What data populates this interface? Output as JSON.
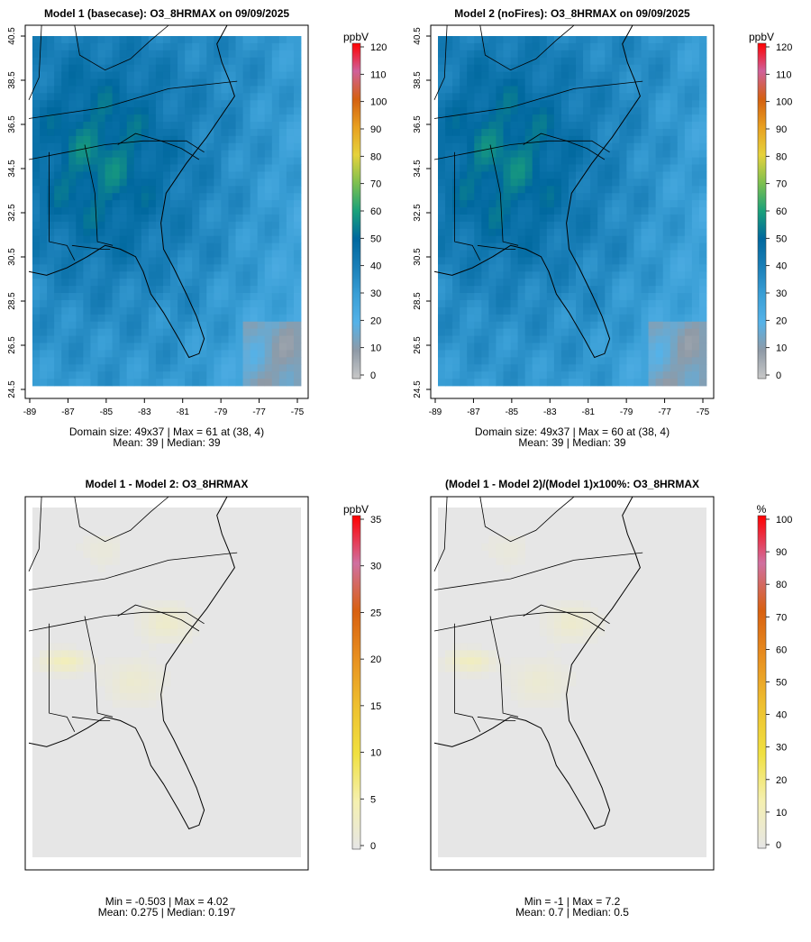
{
  "figure": {
    "panels": [
      {
        "title": "Model 1 (basecase): O3_8HRMAX on 09/09/2025",
        "kind": "abs",
        "stats_line1": "Domain size: 49x37 | Max = 61 at (38, 4)",
        "stats_line2": "Mean: 39 |  Median: 39",
        "x_ticks": [
          "-89",
          "-87",
          "-85",
          "-83",
          "-81",
          "-79",
          "-77",
          "-75"
        ],
        "y_ticks": [
          "24.5",
          "26.5",
          "28.5",
          "30.5",
          "32.5",
          "34.5",
          "36.5",
          "38.5",
          "40.5"
        ],
        "colorbar": {
          "unit": "ppbV",
          "ticks": [
            "0",
            "10",
            "20",
            "30",
            "40",
            "50",
            "60",
            "70",
            "80",
            "90",
            "100",
            "110",
            "120"
          ],
          "max": 120
        }
      },
      {
        "title": "Model 2 (noFires): O3_8HRMAX on 09/09/2025",
        "kind": "abs",
        "stats_line1": "Domain size: 49x37 | Max = 60 at (38, 4)",
        "stats_line2": "Mean: 39 |  Median: 39",
        "x_ticks": [
          "-89",
          "-87",
          "-85",
          "-83",
          "-81",
          "-79",
          "-77",
          "-75"
        ],
        "y_ticks": [
          "24.5",
          "26.5",
          "28.5",
          "30.5",
          "32.5",
          "34.5",
          "36.5",
          "38.5",
          "40.5"
        ],
        "colorbar": {
          "unit": "ppbV",
          "ticks": [
            "0",
            "10",
            "20",
            "30",
            "40",
            "50",
            "60",
            "70",
            "80",
            "90",
            "100",
            "110",
            "120"
          ],
          "max": 120
        }
      },
      {
        "title": "Model 1 - Model 2: O3_8HRMAX",
        "kind": "diff",
        "stats_line1": "Min = -0.503 | Max = 4.02",
        "stats_line2": "Mean: 0.275 |  Median: 0.197",
        "colorbar": {
          "unit": "ppbV",
          "ticks": [
            "0",
            "5",
            "10",
            "15",
            "20",
            "25",
            "30",
            "35"
          ],
          "max": 35
        }
      },
      {
        "title": "(Model 1 - Model 2)/(Model 1)x100%: O3_8HRMAX",
        "kind": "pct",
        "stats_line1": "Min = -1 | Max = 7.2",
        "stats_line2": "Mean: 0.7 |  Median: 0.5",
        "colorbar": {
          "unit": "%",
          "ticks": [
            "0",
            "10",
            "20",
            "30",
            "40",
            "50",
            "60",
            "70",
            "80",
            "90",
            "100"
          ],
          "max": 100
        }
      }
    ],
    "colors": {
      "ozone_scale": [
        "#c8c8c8",
        "#8f9aa6",
        "#55b2e8",
        "#3a9fd6",
        "#1a7fb8",
        "#00689e",
        "#1aa17a",
        "#7ec04f",
        "#e6d23c",
        "#e8a020",
        "#d46010",
        "#d0609a",
        "#ff0000"
      ],
      "diff_scale": [
        "#e6e6e6",
        "#f5f0b0",
        "#f0e040",
        "#eec030",
        "#e89020",
        "#d86010",
        "#d070a0",
        "#ff0000"
      ],
      "missing": "#e6e6e6",
      "outline": "#000000"
    }
  }
}
